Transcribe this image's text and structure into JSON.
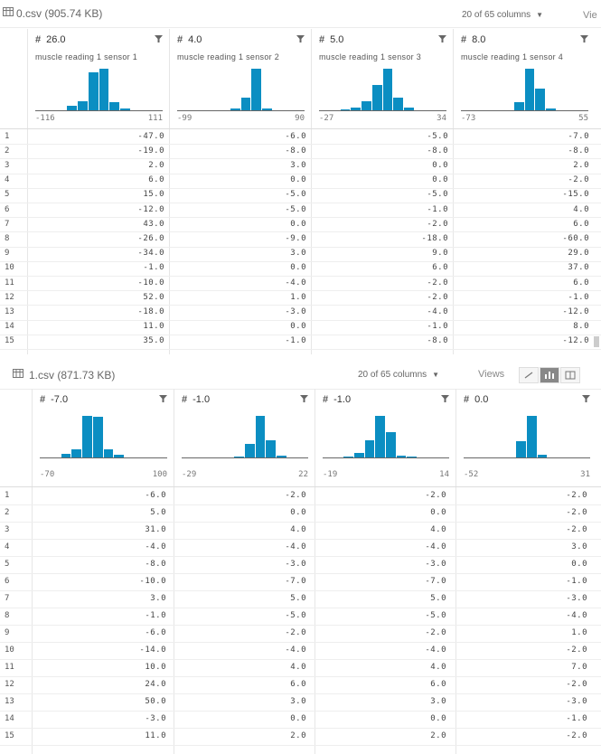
{
  "colors": {
    "bar": "#0b8ec2"
  },
  "panels": [
    {
      "file_title": "0.csv (905.74 KB)",
      "column_count": "20 of 65 columns",
      "views_label": "Vie",
      "columns": [
        {
          "name": "26.0",
          "desc": "muscle reading 1 sensor 1",
          "min": "-116",
          "max": "111",
          "hist": [
            0,
            0,
            0,
            0.1,
            0.22,
            0.92,
            1.0,
            0.2,
            0.05,
            0,
            0,
            0
          ]
        },
        {
          "name": "4.0",
          "desc": "muscle reading 1 sensor 2",
          "min": "-99",
          "max": "90",
          "hist": [
            0,
            0,
            0,
            0,
            0,
            0.05,
            0.3,
            1.0,
            0.05,
            0,
            0,
            0
          ]
        },
        {
          "name": "5.0",
          "desc": "muscle reading 1 sensor 3",
          "min": "-27",
          "max": "34",
          "hist": [
            0,
            0,
            0.03,
            0.07,
            0.22,
            0.6,
            1.0,
            0.3,
            0.06,
            0,
            0,
            0
          ]
        },
        {
          "name": "8.0",
          "desc": "muscle reading 1 sensor 4",
          "min": "-73",
          "max": "55",
          "hist": [
            0,
            0,
            0,
            0,
            0,
            0.2,
            1.0,
            0.53,
            0.05,
            0,
            0,
            0
          ]
        }
      ],
      "rows": [
        [
          "1",
          "-47.0",
          "-6.0",
          "-5.0",
          "-7.0"
        ],
        [
          "2",
          "-19.0",
          "-8.0",
          "-8.0",
          "-8.0"
        ],
        [
          "3",
          "2.0",
          "3.0",
          "0.0",
          "2.0"
        ],
        [
          "4",
          "6.0",
          "0.0",
          "0.0",
          "-2.0"
        ],
        [
          "5",
          "15.0",
          "-5.0",
          "-5.0",
          "-15.0"
        ],
        [
          "6",
          "-12.0",
          "-5.0",
          "-1.0",
          "4.0"
        ],
        [
          "7",
          "43.0",
          "0.0",
          "-2.0",
          "6.0"
        ],
        [
          "8",
          "-26.0",
          "-9.0",
          "-18.0",
          "-60.0"
        ],
        [
          "9",
          "-34.0",
          "3.0",
          "9.0",
          "29.0"
        ],
        [
          "10",
          "-1.0",
          "0.0",
          "6.0",
          "37.0"
        ],
        [
          "11",
          "-10.0",
          "-4.0",
          "-2.0",
          "6.0"
        ],
        [
          "12",
          "52.0",
          "1.0",
          "-2.0",
          "-1.0"
        ],
        [
          "13",
          "-18.0",
          "-3.0",
          "-4.0",
          "-12.0"
        ],
        [
          "14",
          "11.0",
          "0.0",
          "-1.0",
          "8.0"
        ],
        [
          "15",
          "35.0",
          "-1.0",
          "-8.0",
          "-12.0"
        ]
      ]
    },
    {
      "file_title": "1.csv (871.73 KB)",
      "column_count": "20 of 65 columns",
      "views_label": "Views",
      "columns": [
        {
          "name": "-7.0",
          "desc": "",
          "min": "-70",
          "max": "100",
          "hist": [
            0,
            0,
            0.08,
            0.2,
            1.0,
            0.97,
            0.2,
            0.06,
            0,
            0,
            0,
            0
          ]
        },
        {
          "name": "-1.0",
          "desc": "",
          "min": "-29",
          "max": "22",
          "hist": [
            0,
            0,
            0,
            0,
            0,
            0.03,
            0.32,
            1.0,
            0.42,
            0.05,
            0,
            0
          ]
        },
        {
          "name": "-1.0",
          "desc": "",
          "min": "-19",
          "max": "14",
          "hist": [
            0,
            0,
            0.03,
            0.1,
            0.42,
            1.0,
            0.6,
            0.05,
            0.02,
            0,
            0,
            0
          ]
        },
        {
          "name": "0.0",
          "desc": "",
          "min": "-52",
          "max": "31",
          "hist": [
            0,
            0,
            0,
            0,
            0,
            0.4,
            1.0,
            0.06,
            0,
            0,
            0,
            0
          ]
        }
      ],
      "rows": [
        [
          "1",
          "-6.0",
          "-2.0",
          "-2.0",
          "-2.0"
        ],
        [
          "2",
          "5.0",
          "0.0",
          "0.0",
          "-2.0"
        ],
        [
          "3",
          "31.0",
          "4.0",
          "4.0",
          "-2.0"
        ],
        [
          "4",
          "-4.0",
          "-4.0",
          "-4.0",
          "3.0"
        ],
        [
          "5",
          "-8.0",
          "-3.0",
          "-3.0",
          "0.0"
        ],
        [
          "6",
          "-10.0",
          "-7.0",
          "-7.0",
          "-1.0"
        ],
        [
          "7",
          "3.0",
          "5.0",
          "5.0",
          "-3.0"
        ],
        [
          "8",
          "-1.0",
          "-5.0",
          "-5.0",
          "-4.0"
        ],
        [
          "9",
          "-6.0",
          "-2.0",
          "-2.0",
          "1.0"
        ],
        [
          "10",
          "-14.0",
          "-4.0",
          "-4.0",
          "-2.0"
        ],
        [
          "11",
          "10.0",
          "4.0",
          "4.0",
          "7.0"
        ],
        [
          "12",
          "24.0",
          "6.0",
          "6.0",
          "-2.0"
        ],
        [
          "13",
          "50.0",
          "3.0",
          "3.0",
          "-3.0"
        ],
        [
          "14",
          "-3.0",
          "0.0",
          "0.0",
          "-1.0"
        ],
        [
          "15",
          "11.0",
          "2.0",
          "2.0",
          "-2.0"
        ]
      ]
    }
  ]
}
